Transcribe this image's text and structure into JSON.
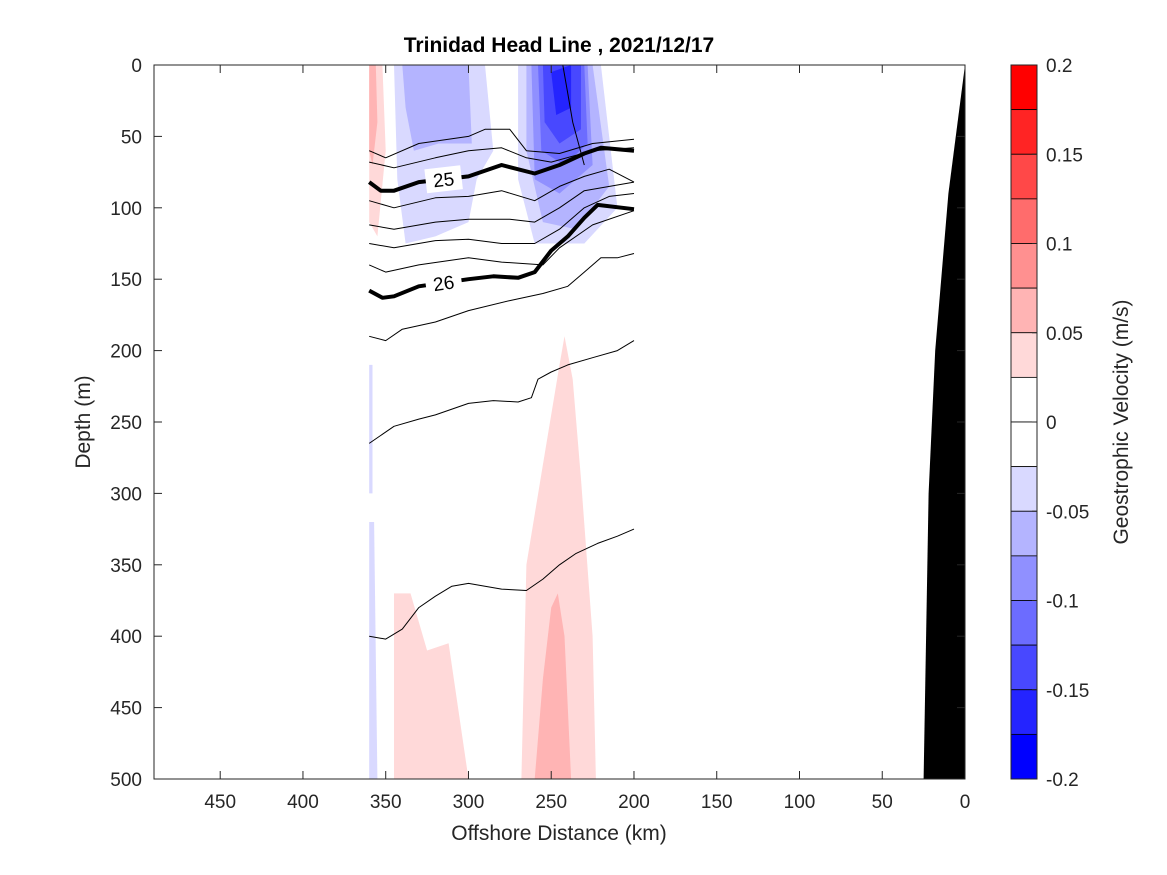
{
  "chart_data": {
    "type": "contour",
    "title": "Trinidad Head Line , 2021/12/17",
    "xlabel": "Offshore Distance (km)",
    "ylabel": "Depth (m)",
    "x_ticks": [
      450,
      400,
      350,
      300,
      250,
      200,
      150,
      100,
      50,
      0
    ],
    "y_ticks": [
      0,
      50,
      100,
      150,
      200,
      250,
      300,
      350,
      400,
      450,
      500
    ],
    "xlim": [
      490,
      0
    ],
    "ylim": [
      0,
      500
    ],
    "x_reversed": true,
    "y_reversed": true,
    "colorbar": {
      "label": "Geostrophic Velocity (m/s)",
      "range": [
        -0.2,
        0.2
      ],
      "ticks": [
        0.2,
        0.15,
        0.1,
        0.05,
        0,
        -0.05,
        -0.1,
        -0.15,
        -0.2
      ],
      "tick_labels": [
        "0.2",
        "0.15",
        "0.1",
        "0.05",
        "0",
        "-0.05",
        "-0.1",
        "-0.15",
        "-0.2"
      ],
      "levels": [
        -0.2,
        -0.175,
        -0.15,
        -0.125,
        -0.1,
        -0.075,
        -0.05,
        -0.025,
        0.025,
        0.05,
        0.075,
        0.1,
        0.125,
        0.15,
        0.175,
        0.2
      ],
      "colors_top_to_bottom": [
        "#ff0000",
        "#ff2424",
        "#ff4848",
        "#ff6c6c",
        "#ff9090",
        "#ffb4b4",
        "#ffd9d9",
        "#ffffff",
        "#ffffff",
        "#d9d9ff",
        "#b4b4ff",
        "#9090ff",
        "#6c6cff",
        "#4848ff",
        "#2424ff",
        "#0000ff"
      ]
    },
    "velocity_regions": [
      {
        "level": -0.05,
        "color": "#d9d9ff",
        "points": [
          [
            345,
            0
          ],
          [
            290,
            0
          ],
          [
            285,
            60
          ],
          [
            295,
            80
          ],
          [
            300,
            110
          ],
          [
            320,
            120
          ],
          [
            338,
            125
          ],
          [
            343,
            80
          ]
        ]
      },
      {
        "level": -0.05,
        "color": "#b4b4ff",
        "points": [
          [
            340,
            0
          ],
          [
            300,
            0
          ],
          [
            298,
            55
          ],
          [
            318,
            55
          ],
          [
            333,
            60
          ],
          [
            338,
            30
          ]
        ]
      },
      {
        "level": -0.025,
        "color": "#d9d9ff",
        "points": [
          [
            270,
            0
          ],
          [
            220,
            0
          ],
          [
            210,
            100
          ],
          [
            230,
            125
          ],
          [
            260,
            125
          ],
          [
            270,
            80
          ]
        ]
      },
      {
        "level": -0.05,
        "color": "#b4b4ff",
        "points": [
          [
            265,
            0
          ],
          [
            225,
            0
          ],
          [
            215,
            85
          ],
          [
            235,
            115
          ],
          [
            255,
            110
          ],
          [
            265,
            60
          ]
        ]
      },
      {
        "level": -0.075,
        "color": "#9090ff",
        "points": [
          [
            262,
            0
          ],
          [
            228,
            0
          ],
          [
            225,
            70
          ],
          [
            245,
            90
          ],
          [
            260,
            80
          ]
        ]
      },
      {
        "level": -0.1,
        "color": "#6c6cff",
        "points": [
          [
            258,
            0
          ],
          [
            230,
            0
          ],
          [
            228,
            55
          ],
          [
            242,
            70
          ],
          [
            256,
            60
          ]
        ]
      },
      {
        "level": -0.125,
        "color": "#4848ff",
        "points": [
          [
            255,
            0
          ],
          [
            232,
            0
          ],
          [
            232,
            45
          ],
          [
            245,
            55
          ],
          [
            254,
            40
          ]
        ]
      },
      {
        "level": -0.15,
        "color": "#2424ff",
        "points": [
          [
            250,
            5
          ],
          [
            238,
            0
          ],
          [
            238,
            30
          ],
          [
            247,
            35
          ]
        ]
      },
      {
        "level": 0.05,
        "color": "#ffd9d9",
        "points": [
          [
            360,
            0
          ],
          [
            352,
            0
          ],
          [
            350,
            60
          ],
          [
            355,
            120
          ],
          [
            360,
            110
          ]
        ]
      },
      {
        "level": 0.075,
        "color": "#ffb4b4",
        "points": [
          [
            360,
            0
          ],
          [
            356,
            0
          ],
          [
            355,
            40
          ],
          [
            358,
            70
          ],
          [
            360,
            60
          ]
        ]
      },
      {
        "level": 0.025,
        "color": "#ffd9d9",
        "points": [
          [
            345,
            370
          ],
          [
            335,
            370
          ],
          [
            325,
            410
          ],
          [
            312,
            405
          ],
          [
            300,
            500
          ],
          [
            345,
            500
          ]
        ]
      },
      {
        "level": 0.025,
        "color": "#ffd9d9",
        "points": [
          [
            268,
            500
          ],
          [
            265,
            350
          ],
          [
            255,
            280
          ],
          [
            245,
            210
          ],
          [
            242,
            190
          ],
          [
            237,
            220
          ],
          [
            232,
            290
          ],
          [
            225,
            400
          ],
          [
            223,
            500
          ]
        ]
      },
      {
        "level": 0.05,
        "color": "#ffb4b4",
        "points": [
          [
            260,
            500
          ],
          [
            255,
            430
          ],
          [
            250,
            380
          ],
          [
            246,
            370
          ],
          [
            242,
            400
          ],
          [
            240,
            450
          ],
          [
            238,
            500
          ]
        ]
      },
      {
        "level": -0.025,
        "color": "#d9d9ff",
        "points": [
          [
            360,
            210
          ],
          [
            358,
            210
          ],
          [
            358,
            300
          ],
          [
            360,
            300
          ]
        ]
      },
      {
        "level": -0.025,
        "color": "#d9d9ff",
        "points": [
          [
            360,
            320
          ],
          [
            357,
            320
          ],
          [
            355,
            500
          ],
          [
            360,
            500
          ]
        ]
      }
    ],
    "density_contours": [
      {
        "level": "",
        "bold": false,
        "points": [
          [
            360,
            60
          ],
          [
            350,
            65
          ],
          [
            330,
            55
          ],
          [
            300,
            50
          ],
          [
            290,
            45
          ],
          [
            275,
            45
          ],
          [
            265,
            60
          ],
          [
            245,
            62
          ],
          [
            225,
            55
          ],
          [
            200,
            52
          ]
        ]
      },
      {
        "level": "",
        "bold": false,
        "points": [
          [
            360,
            68
          ],
          [
            345,
            72
          ],
          [
            320,
            65
          ],
          [
            300,
            60
          ],
          [
            280,
            58
          ],
          [
            265,
            65
          ],
          [
            250,
            68
          ],
          [
            225,
            60
          ],
          [
            200,
            58
          ]
        ]
      },
      {
        "level": "25",
        "bold": true,
        "points": [
          [
            360,
            82
          ],
          [
            353,
            88
          ],
          [
            345,
            88
          ],
          [
            330,
            82
          ],
          [
            300,
            78
          ],
          [
            280,
            70
          ],
          [
            260,
            76
          ],
          [
            245,
            70
          ],
          [
            230,
            62
          ],
          [
            220,
            58
          ],
          [
            200,
            60
          ]
        ]
      },
      {
        "level": "",
        "bold": false,
        "points": [
          [
            360,
            95
          ],
          [
            345,
            100
          ],
          [
            320,
            93
          ],
          [
            300,
            92
          ],
          [
            280,
            88
          ],
          [
            260,
            95
          ],
          [
            245,
            85
          ],
          [
            230,
            78
          ],
          [
            215,
            73
          ],
          [
            200,
            82
          ]
        ]
      },
      {
        "level": "",
        "bold": false,
        "points": [
          [
            360,
            112
          ],
          [
            345,
            115
          ],
          [
            320,
            110
          ],
          [
            300,
            108
          ],
          [
            275,
            108
          ],
          [
            260,
            110
          ],
          [
            245,
            100
          ],
          [
            230,
            88
          ],
          [
            200,
            82
          ]
        ]
      },
      {
        "level": "",
        "bold": false,
        "points": [
          [
            360,
            125
          ],
          [
            345,
            128
          ],
          [
            320,
            123
          ],
          [
            300,
            122
          ],
          [
            280,
            125
          ],
          [
            260,
            125
          ],
          [
            245,
            115
          ],
          [
            230,
            100
          ],
          [
            215,
            92
          ],
          [
            200,
            90
          ]
        ]
      },
      {
        "level": "",
        "bold": false,
        "points": [
          [
            360,
            140
          ],
          [
            350,
            145
          ],
          [
            330,
            140
          ],
          [
            300,
            135
          ],
          [
            280,
            138
          ],
          [
            255,
            140
          ],
          [
            245,
            128
          ],
          [
            225,
            112
          ],
          [
            200,
            102
          ]
        ]
      },
      {
        "level": "26",
        "bold": true,
        "points": [
          [
            360,
            158
          ],
          [
            352,
            163
          ],
          [
            345,
            162
          ],
          [
            330,
            155
          ],
          [
            300,
            150
          ],
          [
            285,
            148
          ],
          [
            270,
            149
          ],
          [
            260,
            145
          ],
          [
            250,
            130
          ],
          [
            240,
            120
          ],
          [
            230,
            107
          ],
          [
            222,
            98
          ],
          [
            200,
            101
          ]
        ]
      },
      {
        "level": "",
        "bold": false,
        "points": [
          [
            360,
            190
          ],
          [
            350,
            193
          ],
          [
            340,
            185
          ],
          [
            320,
            180
          ],
          [
            300,
            172
          ],
          [
            275,
            165
          ],
          [
            255,
            160
          ],
          [
            240,
            155
          ],
          [
            230,
            145
          ],
          [
            220,
            135
          ],
          [
            210,
            135
          ],
          [
            200,
            132
          ]
        ]
      },
      {
        "level": "",
        "bold": false,
        "points": [
          [
            360,
            265
          ],
          [
            345,
            253
          ],
          [
            330,
            248
          ],
          [
            320,
            245
          ],
          [
            300,
            237
          ],
          [
            285,
            235
          ],
          [
            270,
            236
          ],
          [
            262,
            233
          ],
          [
            258,
            220
          ],
          [
            250,
            215
          ],
          [
            240,
            210
          ],
          [
            225,
            205
          ],
          [
            210,
            200
          ],
          [
            200,
            193
          ]
        ]
      },
      {
        "level": "",
        "bold": false,
        "points": [
          [
            360,
            400
          ],
          [
            350,
            402
          ],
          [
            340,
            395
          ],
          [
            330,
            380
          ],
          [
            320,
            372
          ],
          [
            310,
            365
          ],
          [
            300,
            363
          ],
          [
            290,
            365
          ],
          [
            280,
            367
          ],
          [
            265,
            368
          ],
          [
            255,
            360
          ],
          [
            245,
            350
          ],
          [
            235,
            342
          ],
          [
            222,
            335
          ],
          [
            210,
            330
          ],
          [
            200,
            325
          ]
        ]
      },
      {
        "level": "",
        "bold": false,
        "points": [
          [
            243,
            0
          ],
          [
            240,
            20
          ],
          [
            237,
            40
          ],
          [
            230,
            70
          ]
        ]
      }
    ],
    "bathymetry": [
      [
        490,
        500
      ],
      [
        25,
        500
      ],
      [
        22,
        300
      ],
      [
        18,
        200
      ],
      [
        10,
        90
      ],
      [
        0,
        0
      ],
      [
        0,
        500
      ]
    ]
  }
}
